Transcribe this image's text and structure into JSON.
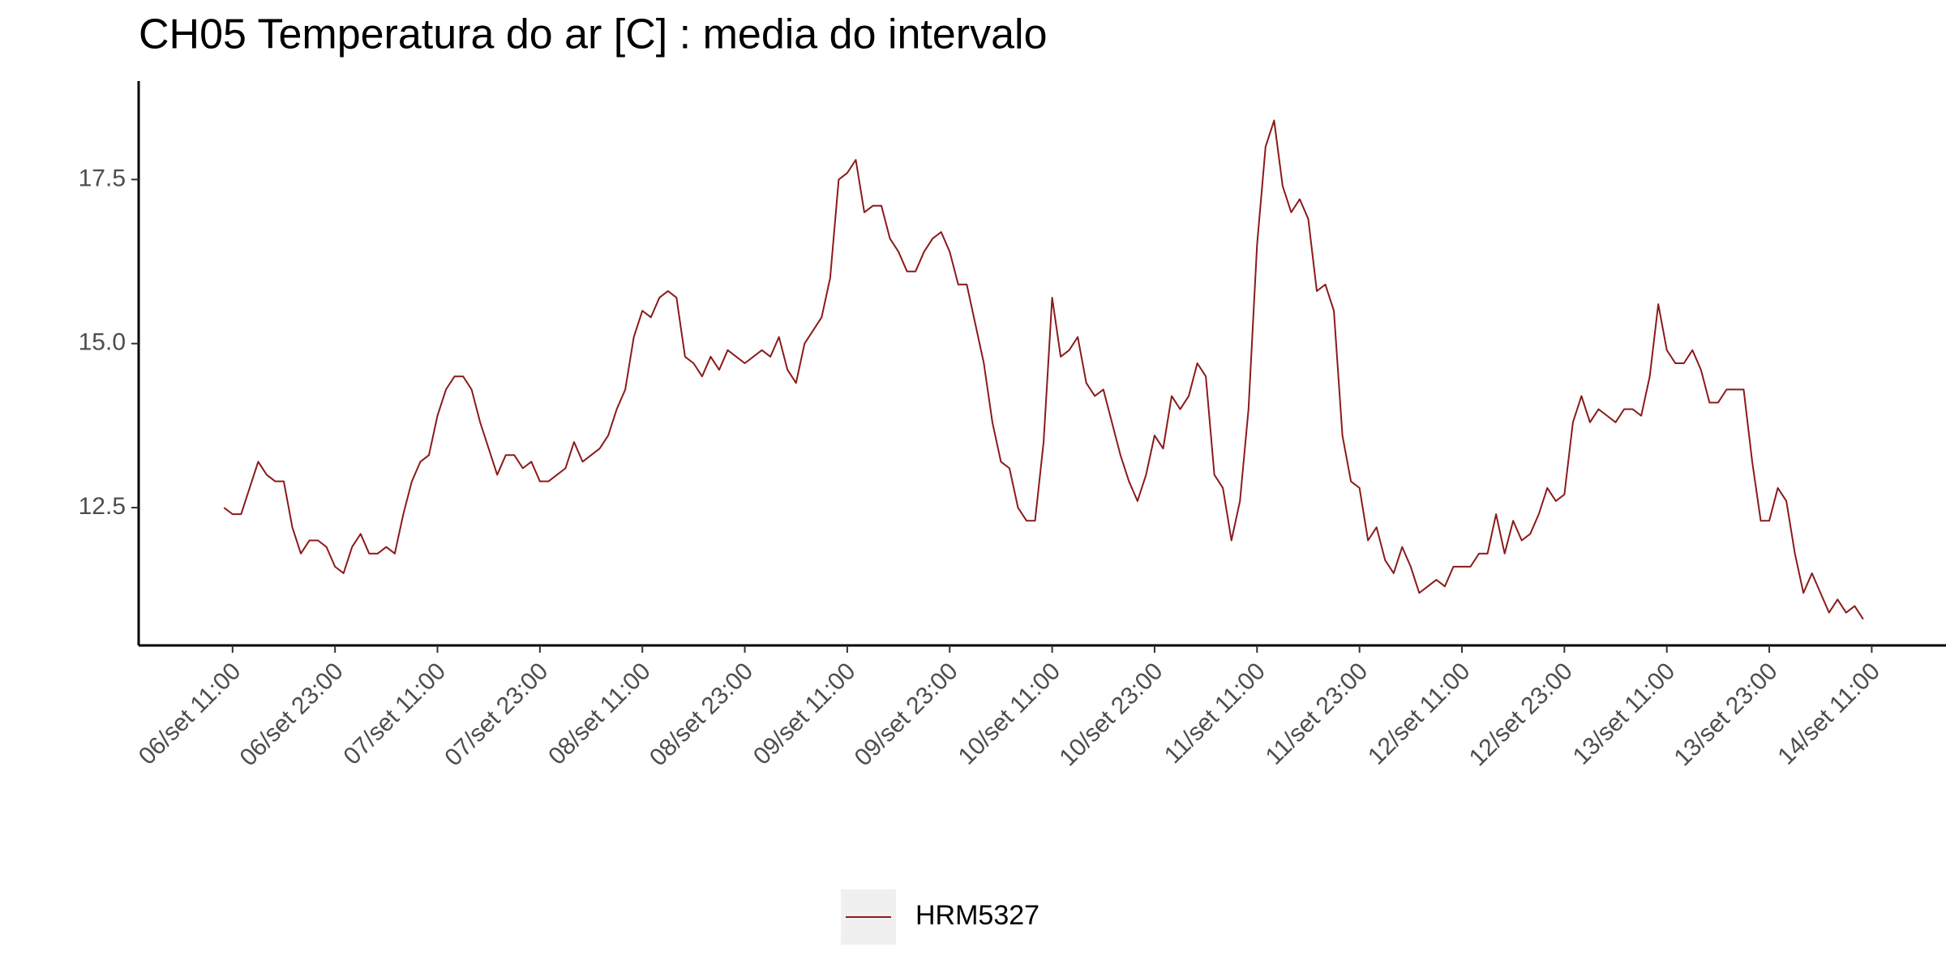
{
  "chart_data": {
    "type": "line",
    "title": "CH05 Temperatura do ar [C] : media do intervalo",
    "x": [
      "06/set 10:00",
      "06/set 11:00",
      "06/set 12:00",
      "06/set 13:00",
      "06/set 14:00",
      "06/set 15:00",
      "06/set 16:00",
      "06/set 17:00",
      "06/set 18:00",
      "06/set 19:00",
      "06/set 20:00",
      "06/set 21:00",
      "06/set 22:00",
      "06/set 23:00",
      "07/set 00:00",
      "07/set 01:00",
      "07/set 02:00",
      "07/set 03:00",
      "07/set 04:00",
      "07/set 05:00",
      "07/set 06:00",
      "07/set 07:00",
      "07/set 08:00",
      "07/set 09:00",
      "07/set 10:00",
      "07/set 11:00",
      "07/set 12:00",
      "07/set 13:00",
      "07/set 14:00",
      "07/set 15:00",
      "07/set 16:00",
      "07/set 17:00",
      "07/set 18:00",
      "07/set 19:00",
      "07/set 20:00",
      "07/set 21:00",
      "07/set 22:00",
      "07/set 23:00",
      "08/set 00:00",
      "08/set 01:00",
      "08/set 02:00",
      "08/set 03:00",
      "08/set 04:00",
      "08/set 05:00",
      "08/set 06:00",
      "08/set 07:00",
      "08/set 08:00",
      "08/set 09:00",
      "08/set 10:00",
      "08/set 11:00",
      "08/set 12:00",
      "08/set 13:00",
      "08/set 14:00",
      "08/set 15:00",
      "08/set 16:00",
      "08/set 17:00",
      "08/set 18:00",
      "08/set 19:00",
      "08/set 20:00",
      "08/set 21:00",
      "08/set 22:00",
      "08/set 23:00",
      "09/set 00:00",
      "09/set 01:00",
      "09/set 02:00",
      "09/set 03:00",
      "09/set 04:00",
      "09/set 05:00",
      "09/set 06:00",
      "09/set 07:00",
      "09/set 08:00",
      "09/set 09:00",
      "09/set 10:00",
      "09/set 11:00",
      "09/set 12:00",
      "09/set 13:00",
      "09/set 14:00",
      "09/set 15:00",
      "09/set 16:00",
      "09/set 17:00",
      "09/set 18:00",
      "09/set 19:00",
      "09/set 20:00",
      "09/set 21:00",
      "09/set 22:00",
      "09/set 23:00",
      "10/set 00:00",
      "10/set 01:00",
      "10/set 02:00",
      "10/set 03:00",
      "10/set 04:00",
      "10/set 05:00",
      "10/set 06:00",
      "10/set 07:00",
      "10/set 08:00",
      "10/set 09:00",
      "10/set 10:00",
      "10/set 11:00",
      "10/set 12:00",
      "10/set 13:00",
      "10/set 14:00",
      "10/set 15:00",
      "10/set 16:00",
      "10/set 17:00",
      "10/set 18:00",
      "10/set 19:00",
      "10/set 20:00",
      "10/set 21:00",
      "10/set 22:00",
      "10/set 23:00",
      "11/set 00:00",
      "11/set 01:00",
      "11/set 02:00",
      "11/set 03:00",
      "11/set 04:00",
      "11/set 05:00",
      "11/set 06:00",
      "11/set 07:00",
      "11/set 08:00",
      "11/set 09:00",
      "11/set 10:00",
      "11/set 11:00",
      "11/set 12:00",
      "11/set 13:00",
      "11/set 14:00",
      "11/set 15:00",
      "11/set 16:00",
      "11/set 17:00",
      "11/set 18:00",
      "11/set 19:00",
      "11/set 20:00",
      "11/set 21:00",
      "11/set 22:00",
      "11/set 23:00",
      "12/set 00:00",
      "12/set 01:00",
      "12/set 02:00",
      "12/set 03:00",
      "12/set 04:00",
      "12/set 05:00",
      "12/set 06:00",
      "12/set 07:00",
      "12/set 08:00",
      "12/set 09:00",
      "12/set 10:00",
      "12/set 11:00",
      "12/set 12:00",
      "12/set 13:00",
      "12/set 14:00",
      "12/set 15:00",
      "12/set 16:00",
      "12/set 17:00",
      "12/set 18:00",
      "12/set 19:00",
      "12/set 20:00",
      "12/set 21:00",
      "12/set 22:00",
      "12/set 23:00",
      "13/set 00:00",
      "13/set 01:00",
      "13/set 02:00",
      "13/set 03:00",
      "13/set 04:00",
      "13/set 05:00",
      "13/set 06:00",
      "13/set 07:00",
      "13/set 08:00",
      "13/set 09:00",
      "13/set 10:00",
      "13/set 11:00",
      "13/set 12:00",
      "13/set 13:00",
      "13/set 14:00",
      "13/set 15:00",
      "13/set 16:00",
      "13/set 17:00",
      "13/set 18:00",
      "13/set 19:00",
      "13/set 20:00",
      "13/set 21:00",
      "13/set 22:00",
      "13/set 23:00",
      "14/set 00:00",
      "14/set 01:00",
      "14/set 02:00",
      "14/set 03:00",
      "14/set 04:00",
      "14/set 05:00",
      "14/set 06:00",
      "14/set 07:00",
      "14/set 08:00",
      "14/set 09:00",
      "14/set 10:00"
    ],
    "series": [
      {
        "name": "HRM5327",
        "color": "#8b1a1a",
        "values": [
          12.5,
          12.4,
          12.4,
          12.8,
          13.2,
          13.0,
          12.9,
          12.9,
          12.2,
          11.8,
          12.0,
          12.0,
          11.9,
          11.6,
          11.5,
          11.9,
          12.1,
          11.8,
          11.8,
          11.9,
          11.8,
          12.4,
          12.9,
          13.2,
          13.3,
          13.9,
          14.3,
          14.5,
          14.5,
          14.3,
          13.8,
          13.4,
          13.0,
          13.3,
          13.3,
          13.1,
          13.2,
          12.9,
          12.9,
          13.0,
          13.1,
          13.5,
          13.2,
          13.3,
          13.4,
          13.6,
          14.0,
          14.3,
          15.1,
          15.5,
          15.4,
          15.7,
          15.8,
          15.7,
          14.8,
          14.7,
          14.5,
          14.8,
          14.6,
          14.9,
          14.8,
          14.7,
          14.8,
          14.9,
          14.8,
          15.1,
          14.6,
          14.4,
          15.0,
          15.2,
          15.4,
          16.0,
          17.5,
          17.6,
          17.8,
          17.0,
          17.1,
          17.1,
          16.6,
          16.4,
          16.1,
          16.1,
          16.4,
          16.6,
          16.7,
          16.4,
          15.9,
          15.9,
          15.3,
          14.7,
          13.8,
          13.2,
          13.1,
          12.5,
          12.3,
          12.3,
          13.5,
          15.7,
          14.8,
          14.9,
          15.1,
          14.4,
          14.2,
          14.3,
          13.8,
          13.3,
          12.9,
          12.6,
          13.0,
          13.6,
          13.4,
          14.2,
          14.0,
          14.2,
          14.7,
          14.5,
          13.0,
          12.8,
          12.0,
          12.6,
          14.0,
          16.5,
          18.0,
          18.4,
          17.4,
          17.0,
          17.2,
          16.9,
          15.8,
          15.9,
          15.5,
          13.6,
          12.9,
          12.8,
          12.0,
          12.2,
          11.7,
          11.5,
          11.9,
          11.6,
          11.2,
          11.3,
          11.4,
          11.3,
          11.6,
          11.6,
          11.6,
          11.8,
          11.8,
          12.4,
          11.8,
          12.3,
          12.0,
          12.1,
          12.4,
          12.8,
          12.6,
          12.7,
          13.8,
          14.2,
          13.8,
          14.0,
          13.9,
          13.8,
          14.0,
          14.0,
          13.9,
          14.5,
          15.6,
          14.9,
          14.7,
          14.7,
          14.9,
          14.6,
          14.1,
          14.1,
          14.3,
          14.3,
          14.3,
          13.2,
          12.3,
          12.3,
          12.8,
          12.6,
          11.8,
          11.2,
          11.5,
          11.2,
          10.9,
          11.1,
          10.9,
          11.0,
          10.8
        ]
      }
    ],
    "xlim": [
      "06/set 00:00",
      "14/set 19:42"
    ],
    "xticks": [
      "06/set 11:00",
      "06/set 23:00",
      "07/set 11:00",
      "07/set 23:00",
      "08/set 11:00",
      "08/set 23:00",
      "09/set 11:00",
      "09/set 23:00",
      "10/set 11:00",
      "10/set 23:00",
      "11/set 11:00",
      "11/set 23:00",
      "12/set 11:00",
      "12/set 23:00",
      "13/set 11:00",
      "13/set 23:00",
      "14/set 11:00"
    ],
    "ylim": [
      10.4,
      19.0
    ],
    "yticks": [
      12.5,
      {
        "value": 15,
        "label": "15.0"
      },
      17.5
    ],
    "grid": false,
    "legend": "bottom"
  }
}
